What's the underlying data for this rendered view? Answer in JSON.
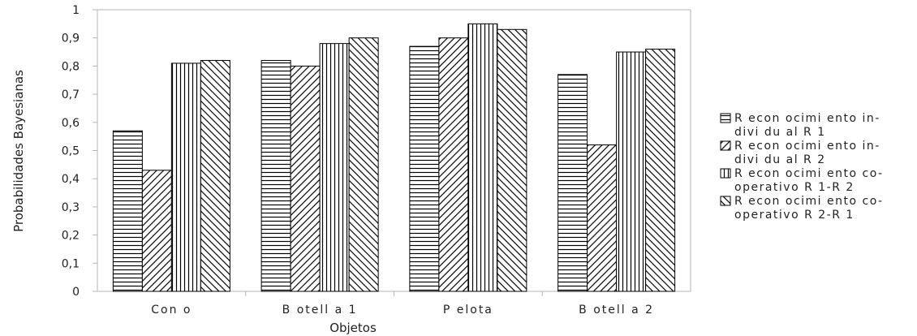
{
  "chart_data": {
    "type": "bar",
    "categories": [
      "Con o",
      "B otell a 1",
      "P elota",
      "B otell a 2"
    ],
    "xlabel": "Objetos",
    "ylabel": "Probabilidades Bayesianas",
    "ylim": [
      0,
      1
    ],
    "yticks": [
      "0",
      "0,1",
      "0,2",
      "0,3",
      "0,4",
      "0,5",
      "0,6",
      "0,7",
      "0,8",
      "0,9",
      "1"
    ],
    "grid": false,
    "legend_position": "right",
    "series": [
      {
        "name": "Reconocimiento individual R1",
        "legend_lines": [
          "R econ ocimi ento in-",
          "divi du al R 1"
        ],
        "pattern": "horizontal-lines",
        "values": [
          0.57,
          0.82,
          0.87,
          0.77
        ]
      },
      {
        "name": "Reconocimiento individual R2",
        "legend_lines": [
          "R econ ocimi ento in-",
          "divi du al R 2"
        ],
        "pattern": "diagonal-lines",
        "values": [
          0.43,
          0.8,
          0.9,
          0.52
        ]
      },
      {
        "name": "Reconocimiento cooperativo R1-R2",
        "legend_lines": [
          "R econ ocimi ento co-",
          "operativo R 1-R 2"
        ],
        "pattern": "vertical-lines",
        "values": [
          0.81,
          0.88,
          0.95,
          0.85
        ]
      },
      {
        "name": "Reconocimiento cooperativo R2-R1",
        "legend_lines": [
          "R econ ocimi ento co-",
          "operativo R 2-R 1"
        ],
        "pattern": "back-diagonal-lines",
        "values": [
          0.82,
          0.9,
          0.93,
          0.86
        ]
      }
    ]
  }
}
